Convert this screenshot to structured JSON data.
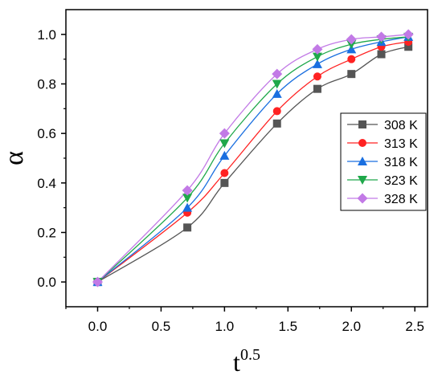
{
  "chart_data": {
    "type": "line",
    "xlabel": "t",
    "xlabel_sup": "0.5",
    "ylabel": "α",
    "xlim": [
      -0.25,
      2.6
    ],
    "ylim": [
      -0.1,
      1.1
    ],
    "xticks": [
      "0.0",
      "0.5",
      "1.0",
      "1.5",
      "2.0",
      "2.5"
    ],
    "yticks": [
      "0.0",
      "0.2",
      "0.4",
      "0.6",
      "0.8",
      "1.0"
    ],
    "grid": false,
    "legend_position": "right",
    "x": [
      0.0,
      0.707,
      1.0,
      1.414,
      1.732,
      2.0,
      2.236,
      2.449
    ],
    "series": [
      {
        "name": "308 K",
        "color": "#555555",
        "marker": "square",
        "values": [
          0.0,
          0.22,
          0.4,
          0.64,
          0.78,
          0.84,
          0.92,
          0.95
        ]
      },
      {
        "name": "313 K",
        "color": "#ff2222",
        "marker": "circle",
        "values": [
          0.0,
          0.28,
          0.44,
          0.69,
          0.83,
          0.9,
          0.95,
          0.97
        ]
      },
      {
        "name": "318 K",
        "color": "#1a6fe0",
        "marker": "triangle-up",
        "values": [
          0.0,
          0.3,
          0.51,
          0.76,
          0.88,
          0.94,
          0.97,
          0.99
        ]
      },
      {
        "name": "323 K",
        "color": "#1fa84a",
        "marker": "triangle-down",
        "values": [
          0.0,
          0.34,
          0.56,
          0.8,
          0.91,
          0.96,
          0.98,
          0.99
        ]
      },
      {
        "name": "328 K",
        "color": "#c27ae6",
        "marker": "diamond",
        "values": [
          0.0,
          0.37,
          0.6,
          0.84,
          0.94,
          0.98,
          0.99,
          1.0
        ]
      }
    ]
  }
}
